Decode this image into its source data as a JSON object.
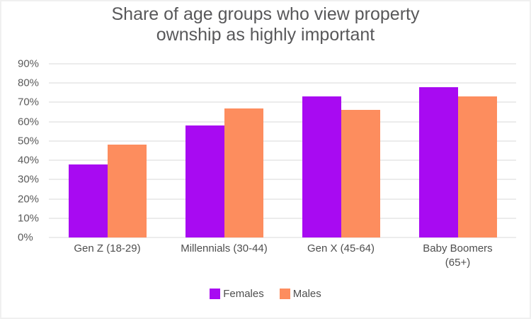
{
  "title_lines": [
    "Share of age groups who view property",
    "ownship as highly important"
  ],
  "chart_data": {
    "type": "bar",
    "title": "Share of age groups who view property ownship as highly important",
    "categories": [
      "Gen Z (18-29)",
      "Millennials (30-44)",
      "Gen X (45-64)",
      "Baby Boomers\n(65+)"
    ],
    "series": [
      {
        "name": "Females",
        "color": "#a80af2",
        "values": [
          38,
          58,
          73,
          78
        ]
      },
      {
        "name": "Males",
        "color": "#fd8d5e",
        "values": [
          48,
          67,
          66,
          73
        ]
      }
    ],
    "xlabel": "",
    "ylabel": "",
    "ylim": [
      0,
      90
    ],
    "ytick_step": 10,
    "ytick_labels_top_to_bottom": [
      "90%",
      "80%",
      "70%",
      "60%",
      "50%",
      "40%",
      "30%",
      "20%",
      "10%",
      "0%"
    ],
    "grid": true,
    "legend_position": "bottom-center",
    "colors": {
      "background": "#ffffff",
      "gridline": "#ececec",
      "title_text": "#58585a",
      "axis_text": "#5b5b5b"
    }
  }
}
